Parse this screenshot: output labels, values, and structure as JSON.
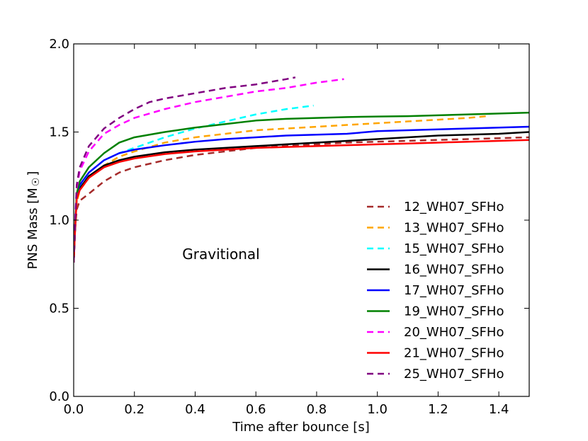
{
  "chart_data": {
    "type": "line",
    "title": "",
    "xlabel": "Time after bounce [s]",
    "ylabel": "PNS Mass [M",
    "ylabel_symbol": "☉",
    "ylabel_close": "]",
    "xlim": [
      0.0,
      1.5
    ],
    "ylim": [
      0.0,
      2.0
    ],
    "xticks": [
      "0.0",
      "0.2",
      "0.4",
      "0.6",
      "0.8",
      "1.0",
      "1.2",
      "1.4"
    ],
    "xtick_values": [
      0.0,
      0.2,
      0.4,
      0.6,
      0.8,
      1.0,
      1.2,
      1.4
    ],
    "yticks": [
      "0.0",
      "0.5",
      "1.0",
      "1.5",
      "2.0"
    ],
    "ytick_values": [
      0.0,
      0.5,
      1.0,
      1.5,
      2.0
    ],
    "annotation": "Gravitional",
    "legend_position": "lower-right",
    "series": [
      {
        "name": "12_WH07_SFHo",
        "color": "#a52a2a",
        "dashed": true,
        "x": [
          0.0,
          0.005,
          0.01,
          0.02,
          0.05,
          0.1,
          0.15,
          0.2,
          0.3,
          0.4,
          0.5,
          0.6,
          0.7,
          0.8,
          0.9,
          1.0,
          1.1,
          1.2,
          1.3,
          1.4,
          1.5
        ],
        "y": [
          0.76,
          0.95,
          1.06,
          1.11,
          1.15,
          1.22,
          1.27,
          1.3,
          1.34,
          1.37,
          1.39,
          1.41,
          1.42,
          1.43,
          1.44,
          1.445,
          1.45,
          1.455,
          1.46,
          1.465,
          1.47
        ]
      },
      {
        "name": "13_WH07_SFHo",
        "color": "#ffa500",
        "dashed": true,
        "x": [
          0.0,
          0.005,
          0.01,
          0.02,
          0.05,
          0.1,
          0.15,
          0.2,
          0.3,
          0.4,
          0.5,
          0.6,
          0.7,
          0.8,
          0.9,
          1.0,
          1.1,
          1.2,
          1.3,
          1.36
        ],
        "y": [
          0.76,
          0.95,
          1.1,
          1.17,
          1.24,
          1.31,
          1.36,
          1.39,
          1.44,
          1.47,
          1.49,
          1.51,
          1.52,
          1.53,
          1.54,
          1.55,
          1.56,
          1.57,
          1.58,
          1.59
        ]
      },
      {
        "name": "15_WH07_SFHo",
        "color": "#00ffff",
        "dashed": true,
        "x": [
          0.0,
          0.005,
          0.01,
          0.02,
          0.05,
          0.1,
          0.15,
          0.2,
          0.25,
          0.3,
          0.4,
          0.5,
          0.6,
          0.7,
          0.79
        ],
        "y": [
          0.76,
          0.96,
          1.12,
          1.19,
          1.27,
          1.34,
          1.38,
          1.41,
          1.44,
          1.47,
          1.52,
          1.56,
          1.6,
          1.63,
          1.65
        ]
      },
      {
        "name": "16_WH07_SFHo",
        "color": "#000000",
        "dashed": false,
        "x": [
          0.0,
          0.005,
          0.01,
          0.02,
          0.05,
          0.1,
          0.15,
          0.2,
          0.3,
          0.4,
          0.5,
          0.6,
          0.7,
          0.8,
          0.9,
          1.0,
          1.1,
          1.2,
          1.3,
          1.4,
          1.5
        ],
        "y": [
          0.76,
          0.96,
          1.13,
          1.18,
          1.25,
          1.31,
          1.34,
          1.36,
          1.385,
          1.4,
          1.41,
          1.42,
          1.43,
          1.44,
          1.45,
          1.46,
          1.47,
          1.48,
          1.485,
          1.49,
          1.5
        ]
      },
      {
        "name": "17_WH07_SFHo",
        "color": "#0000ff",
        "dashed": false,
        "x": [
          0.0,
          0.005,
          0.01,
          0.02,
          0.05,
          0.1,
          0.15,
          0.2,
          0.3,
          0.4,
          0.5,
          0.6,
          0.7,
          0.8,
          0.9,
          1.0,
          1.1,
          1.2,
          1.3,
          1.4,
          1.5
        ],
        "y": [
          0.76,
          0.97,
          1.14,
          1.2,
          1.27,
          1.34,
          1.38,
          1.4,
          1.425,
          1.445,
          1.46,
          1.47,
          1.48,
          1.485,
          1.49,
          1.505,
          1.51,
          1.515,
          1.52,
          1.525,
          1.53
        ]
      },
      {
        "name": "19_WH07_SFHo",
        "color": "#008000",
        "dashed": false,
        "x": [
          0.0,
          0.005,
          0.01,
          0.02,
          0.05,
          0.1,
          0.15,
          0.2,
          0.3,
          0.4,
          0.5,
          0.6,
          0.7,
          0.8,
          0.9,
          1.0,
          1.1,
          1.2,
          1.3,
          1.4,
          1.5
        ],
        "y": [
          0.76,
          0.98,
          1.15,
          1.22,
          1.3,
          1.38,
          1.44,
          1.47,
          1.5,
          1.525,
          1.545,
          1.565,
          1.575,
          1.58,
          1.585,
          1.588,
          1.59,
          1.595,
          1.6,
          1.605,
          1.61
        ]
      },
      {
        "name": "20_WH07_SFHo",
        "color": "#ff00ff",
        "dashed": true,
        "x": [
          0.0,
          0.005,
          0.01,
          0.02,
          0.05,
          0.1,
          0.15,
          0.2,
          0.3,
          0.4,
          0.5,
          0.6,
          0.7,
          0.8,
          0.89
        ],
        "y": [
          0.76,
          1.0,
          1.18,
          1.28,
          1.39,
          1.49,
          1.54,
          1.58,
          1.63,
          1.67,
          1.7,
          1.73,
          1.75,
          1.78,
          1.8
        ]
      },
      {
        "name": "21_WH07_SFHo",
        "color": "#ff0000",
        "dashed": false,
        "x": [
          0.0,
          0.005,
          0.01,
          0.02,
          0.05,
          0.1,
          0.15,
          0.2,
          0.3,
          0.4,
          0.5,
          0.6,
          0.7,
          0.8,
          0.9,
          1.0,
          1.1,
          1.2,
          1.3,
          1.4,
          1.5
        ],
        "y": [
          0.76,
          0.96,
          1.12,
          1.17,
          1.24,
          1.3,
          1.33,
          1.35,
          1.375,
          1.39,
          1.4,
          1.41,
          1.415,
          1.42,
          1.425,
          1.43,
          1.435,
          1.44,
          1.445,
          1.45,
          1.455
        ]
      },
      {
        "name": "25_WH07_SFHo",
        "color": "#800080",
        "dashed": true,
        "x": [
          0.0,
          0.005,
          0.01,
          0.02,
          0.05,
          0.1,
          0.15,
          0.2,
          0.25,
          0.3,
          0.4,
          0.5,
          0.6,
          0.7,
          0.73
        ],
        "y": [
          0.76,
          1.0,
          1.2,
          1.3,
          1.42,
          1.52,
          1.58,
          1.63,
          1.67,
          1.69,
          1.72,
          1.75,
          1.77,
          1.8,
          1.81
        ]
      }
    ]
  }
}
